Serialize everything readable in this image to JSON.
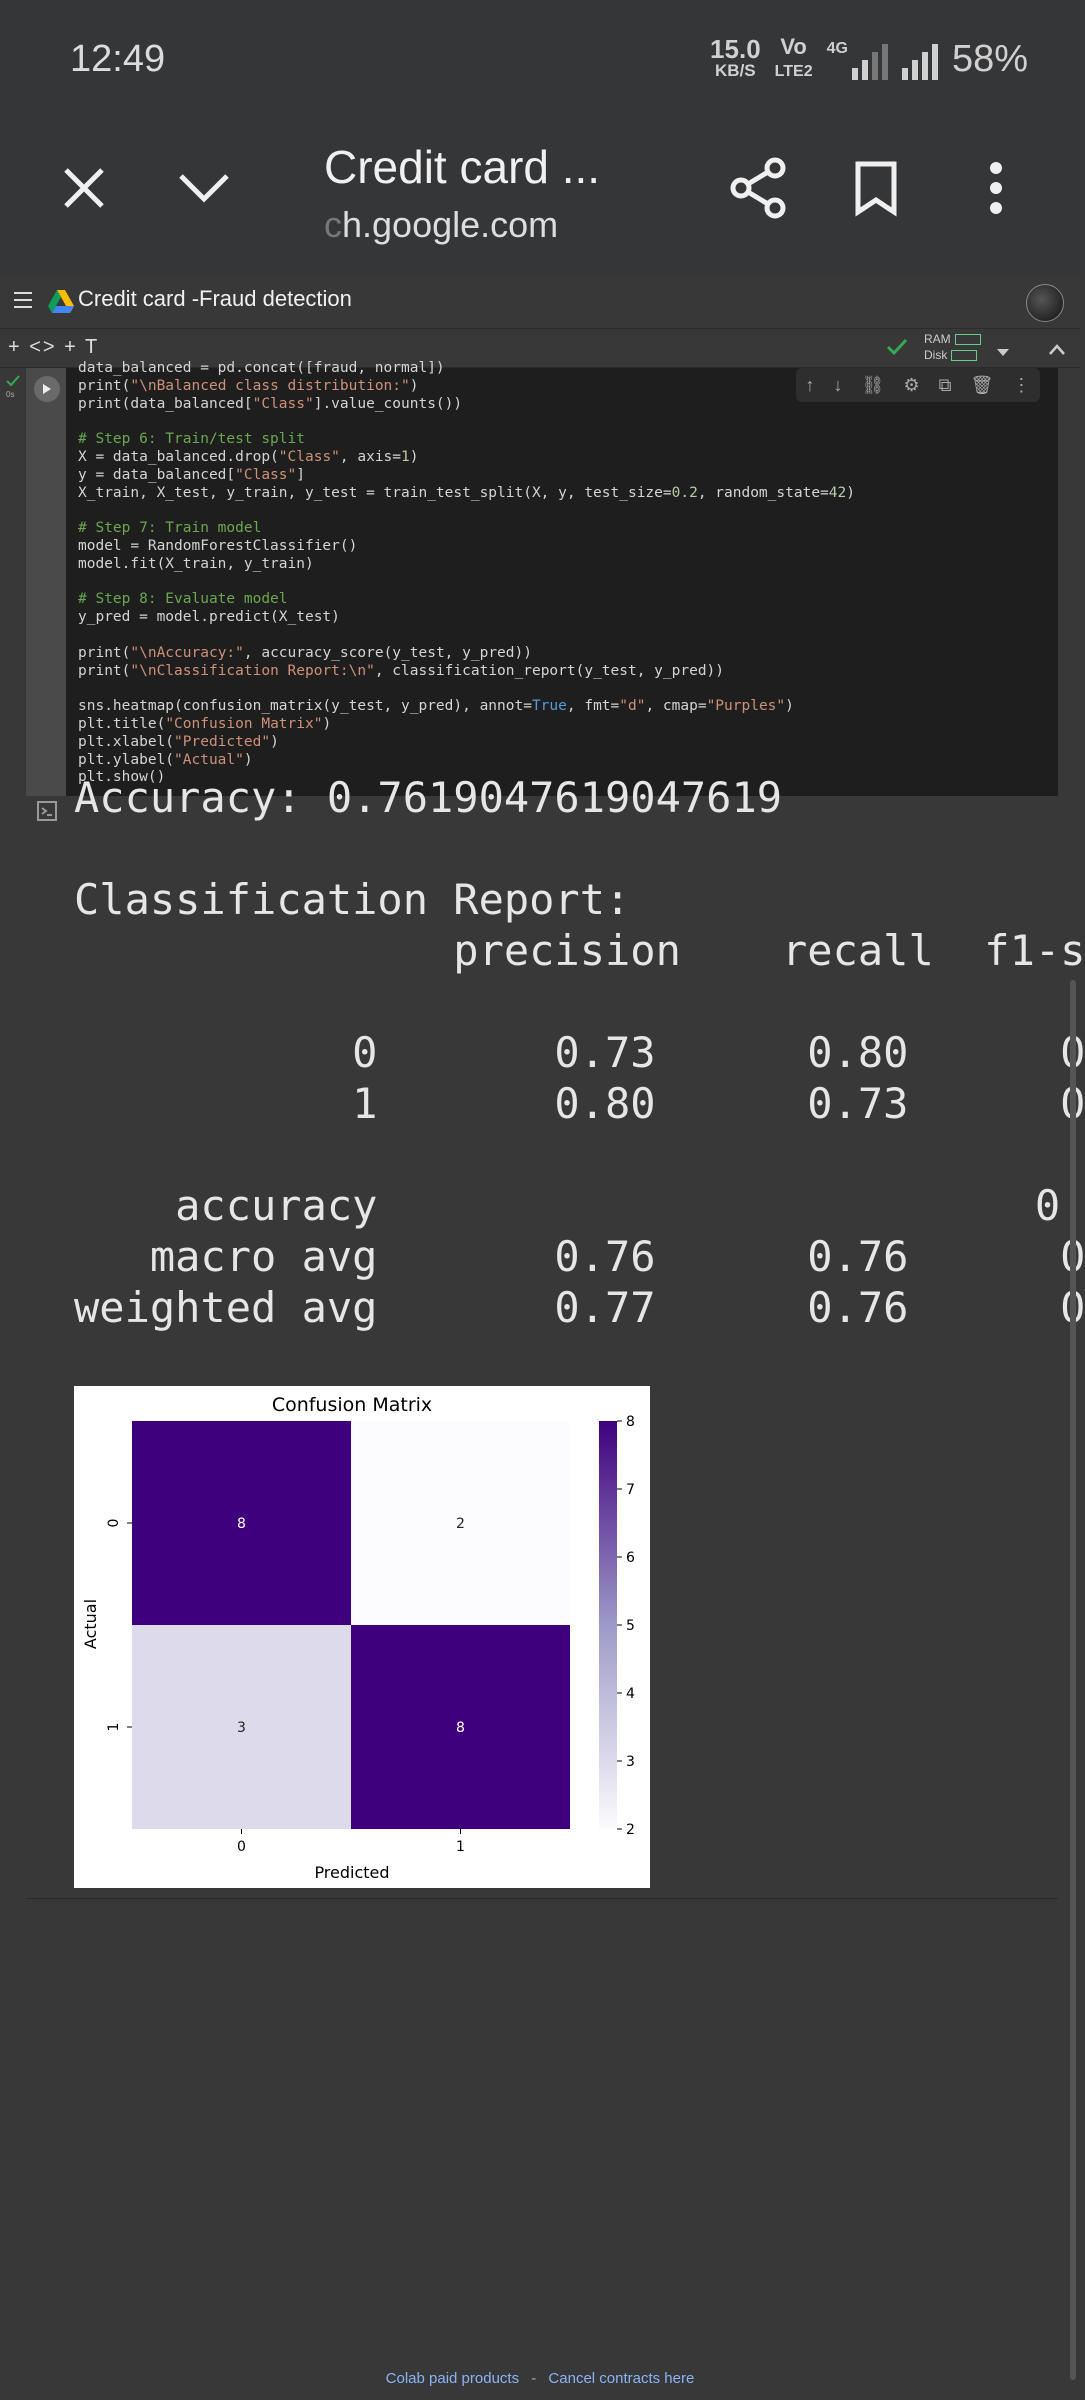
{
  "status_bar": {
    "time": "12:49",
    "net_speed": "15.0",
    "net_unit": "KB/S",
    "volte_top": "Vo",
    "volte_bottom": "LTE2",
    "network": "4G",
    "battery": "58%"
  },
  "browser": {
    "page_title": "Credit card ...",
    "url_fade": "c",
    "url": "h.google.com"
  },
  "colab": {
    "notebook_title": "Credit card -Fraud detection",
    "toolbar_left": "+ <> + T",
    "ram_label": "RAM",
    "disk_label": "Disk",
    "cell_time": "0s"
  },
  "code_lines": [
    "data_balanced = pd.concat([fraud, normal])",
    "print(\"\\nBalanced class distribution:\")",
    "print(data_balanced[\"Class\"].value_counts())",
    "",
    "# Step 6: Train/test split",
    "X = data_balanced.drop(\"Class\", axis=1)",
    "y = data_balanced[\"Class\"]",
    "X_train, X_test, y_train, y_test = train_test_split(X, y, test_size=0.2, random_state=42)",
    "",
    "# Step 7: Train model",
    "model = RandomForestClassifier()",
    "model.fit(X_train, y_train)",
    "",
    "# Step 8: Evaluate model",
    "y_pred = model.predict(X_test)",
    "",
    "print(\"\\nAccuracy:\", accuracy_score(y_test, y_pred))",
    "print(\"\\nClassification Report:\\n\", classification_report(y_test, y_pred))",
    "",
    "sns.heatmap(confusion_matrix(y_test, y_pred), annot=True, fmt=\"d\", cmap=\"Purples\")",
    "plt.title(\"Confusion Matrix\")",
    "plt.xlabel(\"Predicted\")",
    "plt.ylabel(\"Actual\")",
    "plt.show()"
  ],
  "output_lines": [
    "Accuracy: 0.7619047619047619",
    "",
    "Classification Report:",
    "               precision    recall  f1-s",
    "",
    "           0       0.73      0.80      0",
    "           1       0.80      0.73      0",
    "",
    "    accuracy                          0",
    "   macro avg       0.76      0.76      0",
    "weighted avg       0.77      0.76      0"
  ],
  "chart_data": {
    "type": "heatmap",
    "title": "Confusion Matrix",
    "xlabel": "Predicted",
    "ylabel": "Actual",
    "x_ticks": [
      "0",
      "1"
    ],
    "y_ticks": [
      "0",
      "1"
    ],
    "values": [
      [
        8,
        2
      ],
      [
        3,
        8
      ]
    ],
    "colorbar_ticks": [
      "8",
      "7",
      "6",
      "5",
      "4",
      "3",
      "2"
    ],
    "colorbar_range": [
      2,
      8
    ],
    "colormap": "Purples"
  },
  "footer": {
    "text1": "Colab paid products",
    "sep": "-",
    "text2": "Cancel contracts here"
  }
}
